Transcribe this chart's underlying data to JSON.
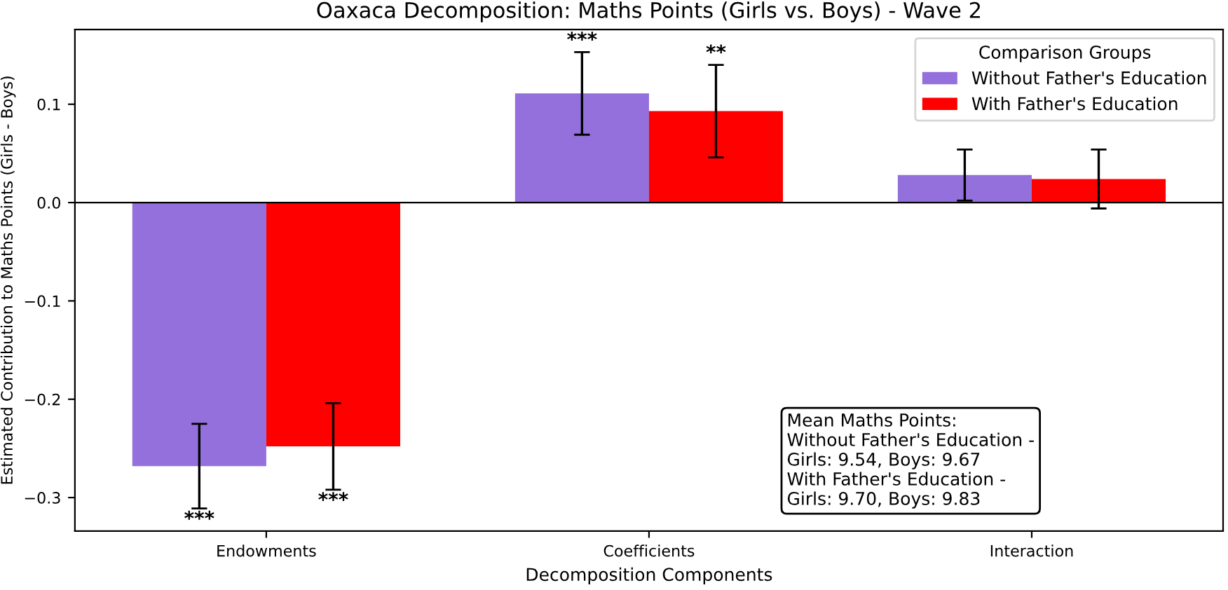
{
  "chart_data": {
    "type": "bar",
    "title": "Oaxaca Decomposition: Maths Points (Girls vs. Boys) - Wave 2",
    "xlabel": "Decomposition Components",
    "ylabel": "Estimated Contribution to Maths Points (Girls - Boys)",
    "legend_title": "Comparison Groups",
    "categories": [
      "Endowments",
      "Coefficients",
      "Interaction"
    ],
    "series": [
      {
        "name": "Without Father's Education",
        "color": "#9370db",
        "values": [
          -0.268,
          0.111,
          0.028
        ],
        "errors": [
          0.043,
          0.042,
          0.026
        ],
        "value_labels": [
          "***",
          "***",
          null
        ]
      },
      {
        "name": "With Father's Education",
        "color": "#ff0000",
        "values": [
          -0.248,
          0.093,
          0.024
        ],
        "errors": [
          0.044,
          0.047,
          0.03
        ],
        "value_labels": [
          "***",
          "**",
          null
        ]
      }
    ],
    "ylim": [
      -0.334,
      0.176
    ],
    "yticks": [
      {
        "value": -0.3,
        "label": "−0.3"
      },
      {
        "value": -0.2,
        "label": "−0.2"
      },
      {
        "value": -0.1,
        "label": "−0.1"
      },
      {
        "value": 0.0,
        "label": "0.0"
      },
      {
        "value": 0.1,
        "label": "0.1"
      }
    ],
    "ref_lines": [
      {
        "axis": "y",
        "value": 0,
        "color": "#000000"
      }
    ],
    "legend": "top right",
    "grid": false,
    "annotations": [
      "Mean Maths Points:\nWithout Father's Education -\nGirls: 9.54, Boys: 9.67\nWith Father's Education -\nGirls: 9.70, Boys: 9.83"
    ]
  }
}
